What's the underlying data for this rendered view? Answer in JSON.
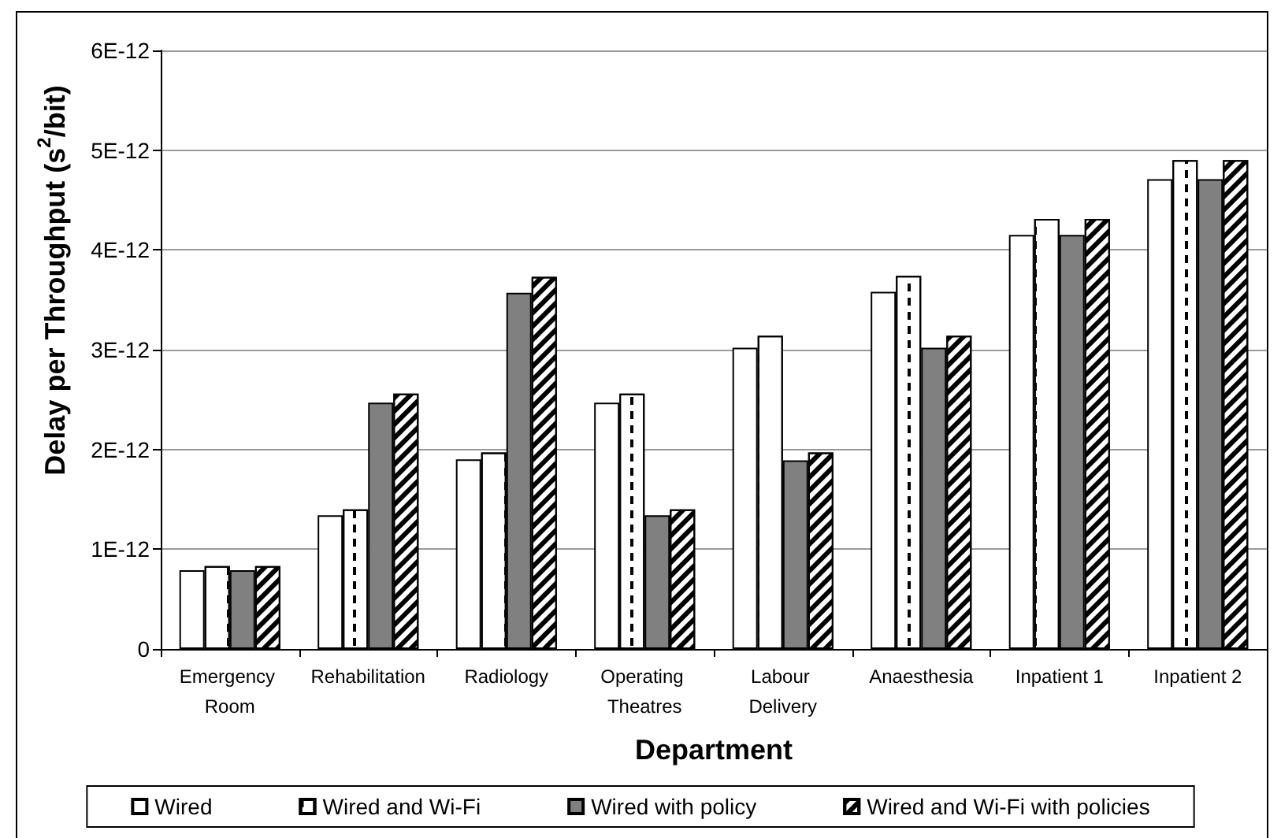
{
  "chart_data": {
    "type": "bar",
    "xlabel": "Department",
    "ylabel": "Delay per Throughput (s$^{2}$/bit)",
    "categories": [
      "Emergency Room",
      "Rehabilitation",
      "Radiology",
      "Operating Theatres",
      "Labour Delivery",
      "Anaesthesia",
      "Inpatient 1",
      "Inpatient 2"
    ],
    "series": [
      {
        "name": "Wired",
        "color": "#ffffff",
        "values": [
          7.9e-13,
          1.34e-12,
          1.9e-12,
          2.47e-12,
          3.02e-12,
          3.58e-12,
          4.15e-12,
          4.71e-12
        ]
      },
      {
        "name": "Wired and Wi-Fi",
        "color": "#ffffff",
        "values": [
          8.3e-13,
          1.4e-12,
          1.97e-12,
          2.56e-12,
          3.14e-12,
          3.74e-12,
          4.31e-12,
          4.9e-12
        ]
      },
      {
        "name": "Wired with policy",
        "color": "#808080",
        "values": [
          7.9e-13,
          2.47e-12,
          3.57e-12,
          1.34e-12,
          1.89e-12,
          3.02e-12,
          4.15e-12,
          4.71e-12
        ]
      },
      {
        "name": "Wired and Wi-Fi with policies",
        "color": "#ffffff",
        "values": [
          8.3e-13,
          2.56e-12,
          3.73e-12,
          1.4e-12,
          1.97e-12,
          3.14e-12,
          4.31e-12,
          4.9e-12
        ]
      }
    ],
    "ylim": [
      0,
      6e-12
    ],
    "yticks": [
      0,
      {
        "value": 1e-12,
        "label": "1E-12"
      },
      {
        "value": 2e-12,
        "label": "2E-12"
      },
      {
        "value": 3e-12,
        "label": "3E-12"
      },
      {
        "value": 4e-12,
        "label": "4E-12"
      },
      {
        "value": 5e-12,
        "label": "5E-12"
      },
      {
        "value": 6e-12,
        "label": "6E-12"
      }
    ],
    "grid": "y",
    "legend": "bottom"
  }
}
